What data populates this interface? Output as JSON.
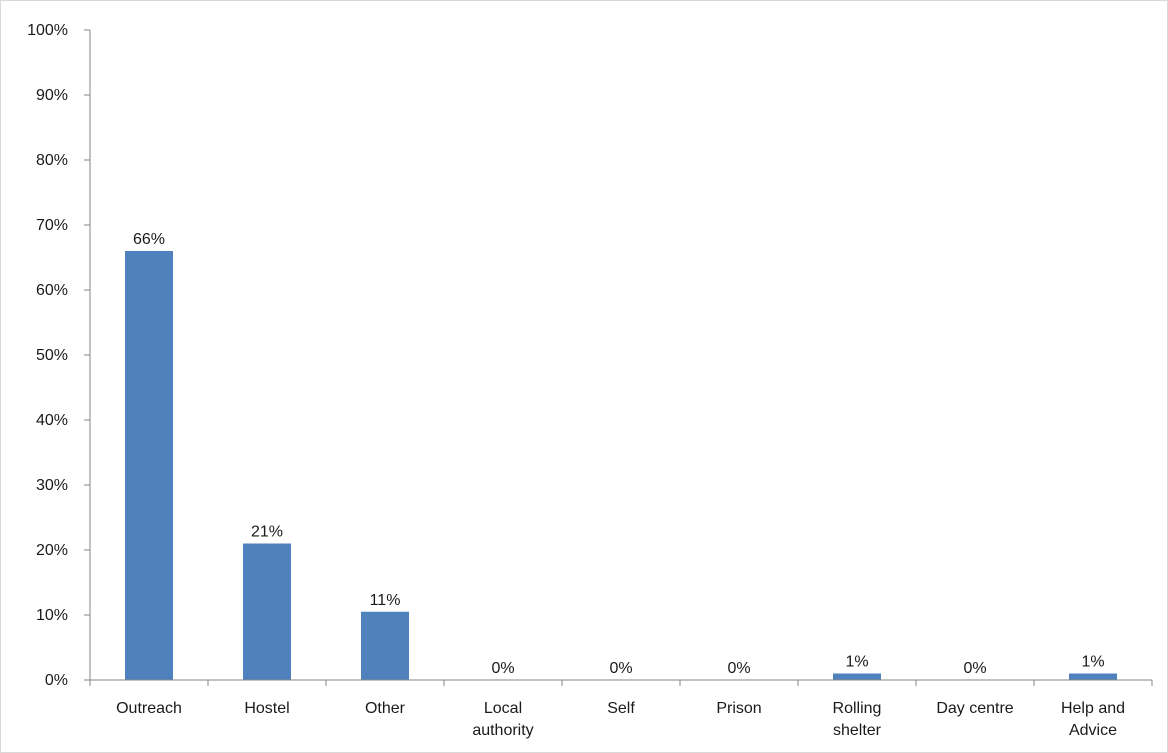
{
  "chart_data": {
    "type": "bar",
    "categories": [
      [
        "Outreach"
      ],
      [
        "Hostel"
      ],
      [
        "Other"
      ],
      [
        "Local",
        "authority"
      ],
      [
        "Self"
      ],
      [
        "Prison"
      ],
      [
        "Rolling",
        "shelter"
      ],
      [
        "Day centre"
      ],
      [
        "Help and",
        "Advice"
      ]
    ],
    "values": [
      66,
      21,
      10.5,
      0,
      0,
      0,
      1,
      0,
      1
    ],
    "data_labels": [
      "66%",
      "21%",
      "11%",
      "0%",
      "0%",
      "0%",
      "1%",
      "0%",
      "1%"
    ],
    "y_ticks": [
      "0%",
      "10%",
      "20%",
      "30%",
      "40%",
      "50%",
      "60%",
      "70%",
      "80%",
      "90%",
      "100%"
    ],
    "ylim": [
      0,
      100
    ],
    "title": "",
    "xlabel": "",
    "ylabel": "",
    "grid": false,
    "legend": "none",
    "bar_color": "#4f81bd",
    "axis_color": "#868686"
  }
}
